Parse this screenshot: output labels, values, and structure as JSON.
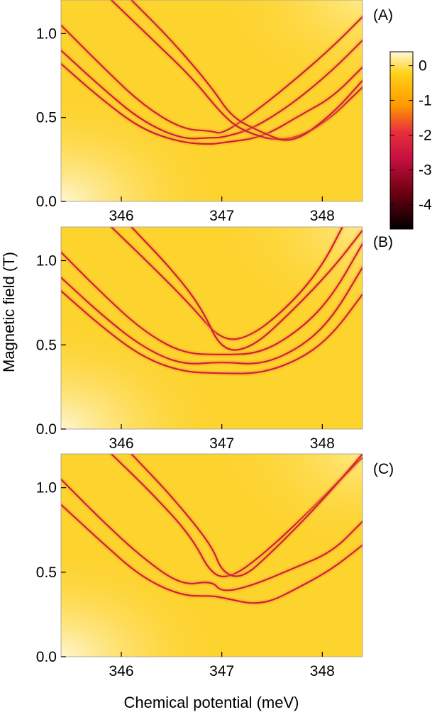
{
  "figure": {
    "ylabel": "Magnetic field (T)",
    "xlabel": "Chemical potential (meV)"
  },
  "colors": {
    "background": "#ffffff",
    "map_base": "#fdd32e",
    "map_light": "#fff3c4",
    "line": "#c8213c",
    "colorscale": [
      "#fff8d8",
      "#ffd21a",
      "#ff9a00",
      "#e8303c",
      "#c81040",
      "#6a0010",
      "#000000"
    ]
  },
  "chart_data": [
    {
      "type": "heatmap",
      "panel_label": "(A)",
      "xlim": [
        345.4,
        348.4
      ],
      "ylim": [
        0,
        1.2
      ],
      "x_ticks": [
        346,
        347,
        348
      ],
      "x_tick_labels": [
        "346",
        "347",
        "348"
      ],
      "y_ticks": [
        0.0,
        0.5,
        1.0
      ],
      "y_tick_labels": [
        "0.0",
        "0.5",
        "1.0"
      ],
      "curves": [
        {
          "points": [
            [
              345.4,
              1.05
            ],
            [
              345.8,
              0.81
            ],
            [
              346.2,
              0.58
            ],
            [
              346.6,
              0.43
            ],
            [
              346.9,
              0.42
            ],
            [
              347.0,
              0.4
            ],
            [
              347.3,
              0.52
            ],
            [
              347.7,
              0.71
            ],
            [
              348.1,
              0.92
            ],
            [
              348.4,
              1.1
            ]
          ]
        },
        {
          "points": [
            [
              345.4,
              0.9
            ],
            [
              345.8,
              0.68
            ],
            [
              346.2,
              0.48
            ],
            [
              346.6,
              0.37
            ],
            [
              346.9,
              0.38
            ],
            [
              347.0,
              0.38
            ],
            [
              347.3,
              0.43
            ],
            [
              347.7,
              0.58
            ],
            [
              348.1,
              0.78
            ],
            [
              348.4,
              0.96
            ]
          ]
        },
        {
          "points": [
            [
              345.4,
              0.82
            ],
            [
              345.8,
              0.61
            ],
            [
              346.2,
              0.43
            ],
            [
              346.6,
              0.35
            ],
            [
              346.9,
              0.34
            ],
            [
              347.0,
              0.35
            ],
            [
              347.4,
              0.38
            ],
            [
              347.8,
              0.52
            ],
            [
              348.1,
              0.62
            ],
            [
              348.4,
              0.8
            ]
          ]
        },
        {
          "points": [
            [
              345.9,
              1.2
            ],
            [
              346.3,
              0.97
            ],
            [
              346.7,
              0.74
            ],
            [
              347.0,
              0.52
            ],
            [
              347.2,
              0.42
            ],
            [
              347.6,
              0.35
            ],
            [
              348.0,
              0.45
            ],
            [
              348.4,
              0.68
            ]
          ]
        },
        {
          "points": [
            [
              346.1,
              1.2
            ],
            [
              346.5,
              0.96
            ],
            [
              346.9,
              0.68
            ],
            [
              347.1,
              0.5
            ],
            [
              347.4,
              0.41
            ],
            [
              347.7,
              0.34
            ],
            [
              348.1,
              0.52
            ],
            [
              348.4,
              0.72
            ]
          ]
        }
      ]
    },
    {
      "type": "heatmap",
      "panel_label": "(B)",
      "xlim": [
        345.4,
        348.4
      ],
      "ylim": [
        0,
        1.2
      ],
      "x_ticks": [
        346,
        347,
        348
      ],
      "x_tick_labels": [
        "346",
        "347",
        "348"
      ],
      "y_ticks": [
        0.0,
        0.5,
        1.0
      ],
      "y_tick_labels": [
        "0.0",
        "0.5",
        "1.0"
      ],
      "curves": [
        {
          "points": [
            [
              345.4,
              1.05
            ],
            [
              345.8,
              0.81
            ],
            [
              346.2,
              0.59
            ],
            [
              346.6,
              0.45
            ],
            [
              347.0,
              0.44
            ],
            [
              347.4,
              0.45
            ],
            [
              347.8,
              0.6
            ],
            [
              348.1,
              0.79
            ],
            [
              348.4,
              1.1
            ]
          ]
        },
        {
          "points": [
            [
              345.4,
              0.9
            ],
            [
              345.8,
              0.68
            ],
            [
              346.2,
              0.49
            ],
            [
              346.6,
              0.38
            ],
            [
              347.0,
              0.4
            ],
            [
              347.4,
              0.38
            ],
            [
              347.8,
              0.49
            ],
            [
              348.1,
              0.66
            ],
            [
              348.4,
              0.96
            ]
          ]
        },
        {
          "points": [
            [
              345.4,
              0.82
            ],
            [
              345.8,
              0.61
            ],
            [
              346.2,
              0.43
            ],
            [
              346.6,
              0.34
            ],
            [
              347.0,
              0.33
            ],
            [
              347.4,
              0.33
            ],
            [
              347.8,
              0.42
            ],
            [
              348.1,
              0.56
            ],
            [
              348.4,
              0.8
            ]
          ]
        },
        {
          "points": [
            [
              345.9,
              1.2
            ],
            [
              346.3,
              0.97
            ],
            [
              346.7,
              0.73
            ],
            [
              347.0,
              0.52
            ],
            [
              347.3,
              0.55
            ],
            [
              347.7,
              0.75
            ],
            [
              348.0,
              0.97
            ],
            [
              348.2,
              1.2
            ]
          ]
        },
        {
          "points": [
            [
              346.1,
              1.2
            ],
            [
              346.5,
              0.95
            ],
            [
              346.8,
              0.72
            ],
            [
              347.0,
              0.46
            ],
            [
              347.3,
              0.48
            ],
            [
              347.7,
              0.7
            ],
            [
              348.1,
              0.95
            ],
            [
              348.4,
              1.18
            ]
          ]
        }
      ]
    },
    {
      "type": "heatmap",
      "panel_label": "(C)",
      "xlim": [
        345.4,
        348.4
      ],
      "ylim": [
        0,
        1.2
      ],
      "x_ticks": [
        346,
        347,
        348
      ],
      "x_tick_labels": [
        "346",
        "347",
        "348"
      ],
      "y_ticks": [
        0.0,
        0.5,
        1.0
      ],
      "y_tick_labels": [
        "0.0",
        "0.5",
        "1.0"
      ],
      "curves": [
        {
          "points": [
            [
              345.4,
              1.05
            ],
            [
              345.8,
              0.81
            ],
            [
              346.2,
              0.59
            ],
            [
              346.6,
              0.42
            ],
            [
              346.9,
              0.45
            ],
            [
              347.0,
              0.38
            ],
            [
              347.3,
              0.42
            ],
            [
              347.7,
              0.52
            ],
            [
              348.1,
              0.62
            ],
            [
              348.4,
              0.8
            ]
          ]
        },
        {
          "points": [
            [
              345.4,
              0.9
            ],
            [
              345.8,
              0.68
            ],
            [
              346.2,
              0.47
            ],
            [
              346.6,
              0.36
            ],
            [
              346.9,
              0.36
            ],
            [
              347.0,
              0.35
            ],
            [
              347.4,
              0.3
            ],
            [
              347.8,
              0.42
            ],
            [
              348.1,
              0.52
            ],
            [
              348.4,
              0.66
            ]
          ]
        },
        {
          "points": [
            [
              345.9,
              1.2
            ],
            [
              346.3,
              0.97
            ],
            [
              346.7,
              0.71
            ],
            [
              346.9,
              0.48
            ],
            [
              347.1,
              0.47
            ],
            [
              347.4,
              0.6
            ],
            [
              347.8,
              0.82
            ],
            [
              348.1,
              1.0
            ],
            [
              348.4,
              1.18
            ]
          ]
        },
        {
          "points": [
            [
              346.1,
              1.2
            ],
            [
              346.5,
              0.95
            ],
            [
              346.9,
              0.66
            ],
            [
              347.0,
              0.5
            ],
            [
              347.2,
              0.46
            ],
            [
              347.5,
              0.62
            ],
            [
              347.9,
              0.86
            ],
            [
              348.2,
              1.06
            ],
            [
              348.4,
              1.2
            ]
          ]
        }
      ]
    }
  ],
  "colorbar": {
    "ticks": [
      0,
      -1,
      -2,
      -3,
      -4
    ],
    "tick_labels": [
      "0",
      "-1",
      "-2",
      "-3",
      "-4"
    ],
    "range": [
      -4.7,
      0.4
    ]
  }
}
